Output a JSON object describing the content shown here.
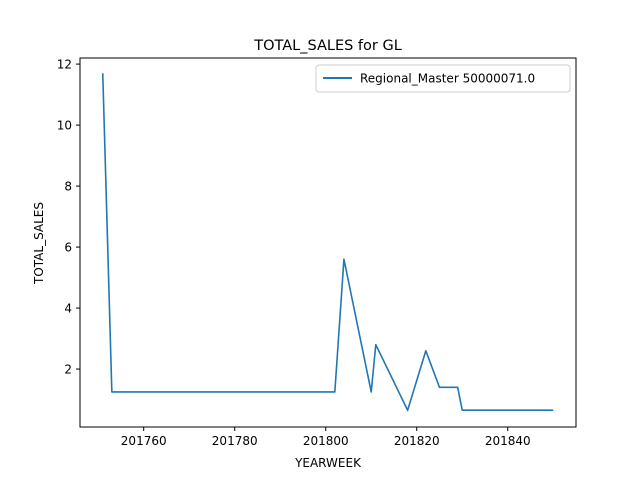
{
  "chart_data": {
    "type": "line",
    "title": "TOTAL_SALES for GL",
    "xlabel": "YEARWEEK",
    "ylabel": "TOTAL_SALES",
    "xlim": [
      201746,
      201855
    ],
    "ylim": [
      0.1,
      12.2
    ],
    "xticks": [
      201760,
      201780,
      201800,
      201820,
      201840
    ],
    "yticks": [
      2,
      4,
      6,
      8,
      10,
      12
    ],
    "grid": false,
    "legend_position": "top-right",
    "series": [
      {
        "name": "Regional_Master 50000071.0",
        "color": "#1f77b4",
        "x": [
          201751,
          201753,
          201760,
          201780,
          201800,
          201802,
          201804,
          201810,
          201811,
          201818,
          201822,
          201825,
          201829,
          201830,
          201840,
          201850
        ],
        "y": [
          11.7,
          1.25,
          1.25,
          1.25,
          1.25,
          1.25,
          5.6,
          1.25,
          2.8,
          0.65,
          2.6,
          1.4,
          1.4,
          0.65,
          0.65,
          0.65
        ]
      }
    ]
  }
}
